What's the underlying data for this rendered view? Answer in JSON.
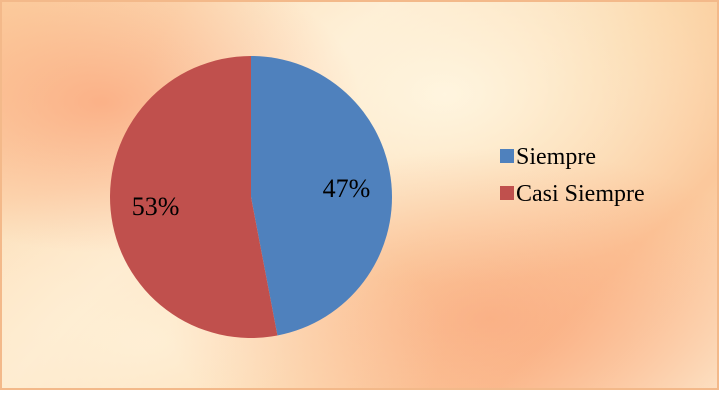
{
  "chart_data": {
    "type": "pie",
    "title": "",
    "slices": [
      {
        "label": "Siempre",
        "value": 47,
        "display": "47%",
        "color": "#4f81bd"
      },
      {
        "label": "Casi Siempre",
        "value": 53,
        "display": "53%",
        "color": "#c0504d"
      }
    ],
    "legend_position": "right"
  }
}
